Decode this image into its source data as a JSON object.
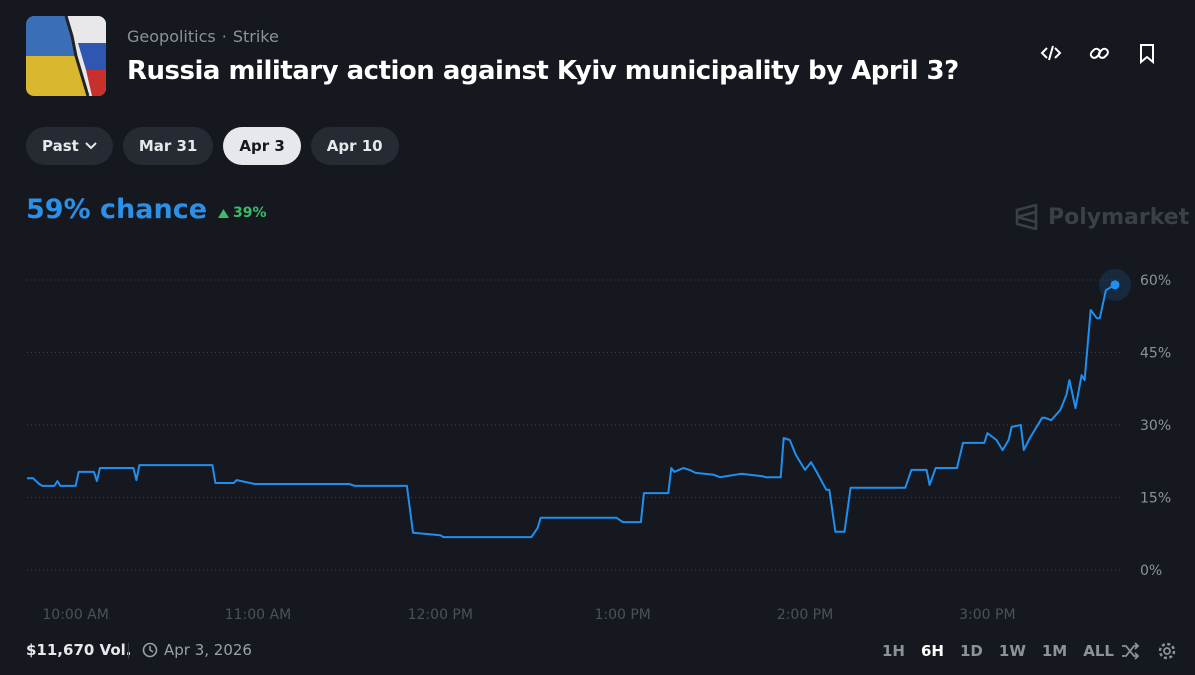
{
  "header": {
    "category": "Geopolitics",
    "tag": "Strike",
    "title": "Russia military action against Kyiv municipality by April 3?"
  },
  "date_tabs": [
    "Past",
    "Mar 31",
    "Apr 3",
    "Apr 10"
  ],
  "selected_date_tab": 2,
  "chance": "59% chance",
  "change": "39%",
  "watermark": "Polymarket",
  "chart_data": {
    "type": "line",
    "color": "#1f8ff0",
    "x": [
      "9:44 AM",
      "9:46 AM",
      "9:48 AM",
      "9:49 AM",
      "9:53 AM",
      "9:54 AM",
      "9:55 AM",
      "10:00 AM",
      "10:01 AM",
      "10:06 AM",
      "10:07 AM",
      "10:08 AM",
      "10:19 AM",
      "10:20 AM",
      "10:21 AM",
      "10:45 AM",
      "10:46 AM",
      "10:52 AM",
      "10:53 AM",
      "10:59 AM",
      "11:30 AM",
      "11:32 AM",
      "11:49 AM",
      "11:51 AM",
      "12:00 PM",
      "12:01 PM",
      "12:30 PM",
      "12:32 PM",
      "12:33 PM",
      "12:58 PM",
      "1:00 PM",
      "1:06 PM",
      "1:07 PM",
      "1:15 PM",
      "1:16 PM",
      "1:17 PM",
      "1:20 PM",
      "1:22 PM",
      "1:24 PM",
      "1:30 PM",
      "1:32 PM",
      "1:39 PM",
      "1:46 PM",
      "1:47 PM",
      "1:52 PM",
      "1:53 PM",
      "1:55 PM",
      "1:57 PM",
      "2:00 PM",
      "2:02 PM",
      "2:04 PM",
      "2:07 PM",
      "2:08 PM",
      "2:10 PM",
      "2:13 PM",
      "2:15 PM",
      "2:33 PM",
      "2:35 PM",
      "2:40 PM",
      "2:41 PM",
      "2:43 PM",
      "2:50 PM",
      "2:52 PM",
      "2:59 PM",
      "3:00 PM",
      "3:03 PM",
      "3:05 PM",
      "3:07 PM",
      "3:08 PM",
      "3:11 PM",
      "3:12 PM",
      "3:14 PM",
      "3:18 PM",
      "3:19 PM",
      "3:21 PM",
      "3:24 PM",
      "3:26 PM",
      "3:27 PM",
      "3:29 PM",
      "3:31 PM",
      "3:32 PM",
      "3:34 PM",
      "3:36 PM",
      "3:37 PM",
      "3:39 PM",
      "3:42 PM"
    ],
    "values": [
      19.0,
      19.0,
      17.8,
      17.4,
      17.4,
      18.4,
      17.4,
      17.4,
      20.3,
      20.3,
      18.4,
      21.1,
      21.1,
      18.6,
      21.7,
      21.7,
      18.0,
      18.0,
      18.6,
      17.8,
      17.8,
      17.4,
      17.4,
      7.7,
      7.2,
      6.8,
      6.8,
      8.7,
      10.8,
      10.8,
      9.9,
      9.9,
      15.9,
      15.9,
      21.1,
      20.3,
      21.1,
      20.7,
      20.1,
      19.7,
      19.2,
      19.9,
      19.4,
      19.2,
      19.2,
      27.3,
      26.9,
      23.8,
      20.7,
      22.3,
      20.1,
      16.6,
      16.6,
      7.9,
      7.9,
      17.0,
      17.0,
      20.7,
      20.7,
      17.6,
      21.1,
      21.1,
      26.3,
      26.3,
      28.3,
      26.9,
      24.8,
      26.9,
      29.6,
      30.0,
      24.8,
      27.3,
      31.5,
      31.5,
      31.0,
      33.1,
      36.2,
      39.3,
      33.5,
      40.3,
      39.3,
      53.8,
      52.1,
      52.1,
      57.9,
      59
    ],
    "xlim": [
      "9:44 AM",
      "3:42 PM"
    ],
    "xticks": [
      "10:00 AM",
      "11:00 AM",
      "12:00 PM",
      "1:00 PM",
      "2:00 PM",
      "3:00 PM"
    ],
    "ylim": [
      0,
      60
    ],
    "yticks": [
      {
        "value": 0,
        "label": "0%"
      },
      {
        "value": 15,
        "label": "15%"
      },
      {
        "value": 30,
        "label": "30%"
      },
      {
        "value": 45,
        "label": "45%"
      },
      {
        "value": 60,
        "label": "60%"
      }
    ],
    "grid": true
  },
  "footer": {
    "volume": "$11,670 Vol.",
    "date": "Apr 3, 2026",
    "ranges": [
      "1H",
      "6H",
      "1D",
      "1W",
      "1M",
      "ALL"
    ],
    "selected_range": 1
  }
}
